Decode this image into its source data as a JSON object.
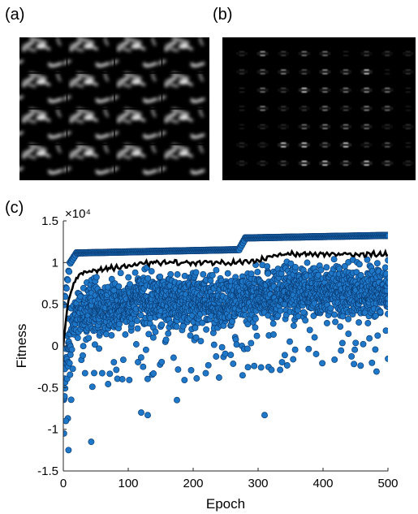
{
  "panels": {
    "a": {
      "label": "(a)"
    },
    "b": {
      "label": "(b)"
    },
    "c": {
      "label": "(c)"
    }
  },
  "colors": {
    "scatter_fill": "#1f77c8",
    "scatter_edge": "#0a3d75",
    "mean_line": "#000000",
    "axis": "#262626",
    "image_bg": "#000000"
  },
  "chart_data": {
    "type": "scatter",
    "title": "",
    "xlabel": "Epoch",
    "ylabel": "Fitness",
    "exponent_label": "×10⁴",
    "xlim": [
      0,
      500
    ],
    "ylim": [
      -1.5,
      1.5
    ],
    "xticks": [
      0,
      100,
      200,
      300,
      400,
      500
    ],
    "yticks": [
      -1.5,
      -1,
      -0.5,
      0,
      0.5,
      1,
      1.5
    ],
    "ytick_labels": [
      "-1.5",
      "-1",
      "-0.5",
      "0",
      "0.5",
      "1",
      "1.5"
    ],
    "grid": false,
    "legend": "none",
    "series": [
      {
        "kind": "scatter",
        "description_points_summary": {
          "max_envelope": [
            [
              0,
              0.5
            ],
            [
              10,
              1.0
            ],
            [
              20,
              1.12
            ],
            [
              100,
              1.13
            ],
            [
              200,
              1.16
            ],
            [
              270,
              1.2
            ],
            [
              280,
              1.3
            ],
            [
              500,
              1.33
            ]
          ],
          "mean_curve": [
            [
              0,
              0.0
            ],
            [
              5,
              0.4
            ],
            [
              10,
              0.6
            ],
            [
              20,
              0.8
            ],
            [
              40,
              0.9
            ],
            [
              80,
              0.95
            ],
            [
              150,
              1.0
            ],
            [
              270,
              1.0
            ],
            [
              300,
              1.07
            ],
            [
              400,
              1.1
            ],
            [
              500,
              1.1
            ]
          ],
          "outliers": [
            [
              1,
              -1.05
            ],
            [
              4,
              -0.9
            ],
            [
              8,
              -1.25
            ],
            [
              43,
              -1.15
            ],
            [
              120,
              -0.8
            ],
            [
              130,
              -0.83
            ],
            [
              310,
              -0.83
            ],
            [
              175,
              -0.65
            ]
          ]
        }
      }
    ]
  }
}
